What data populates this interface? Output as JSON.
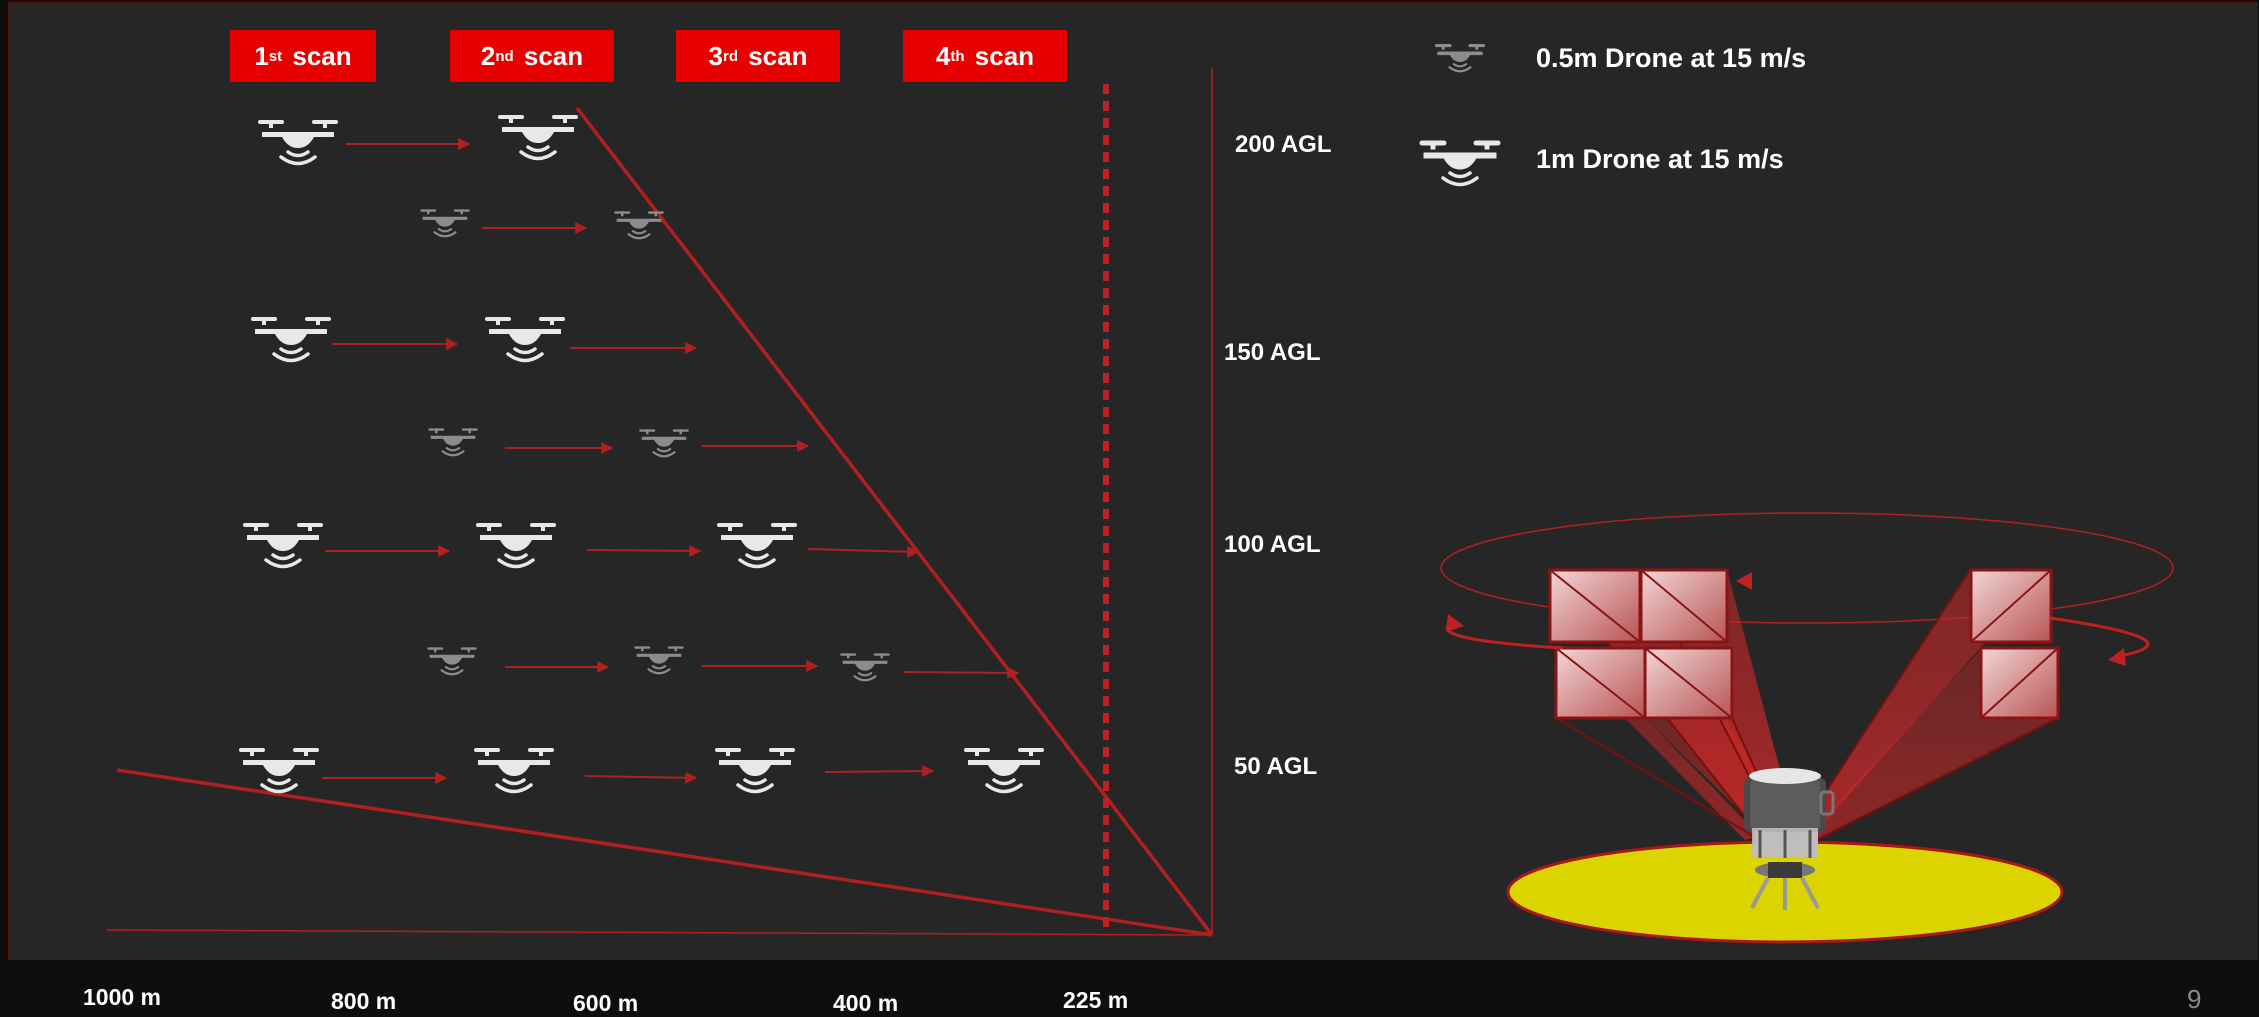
{
  "scans": [
    {
      "num": "1",
      "suffix": "st",
      "word": "scan"
    },
    {
      "num": "2",
      "suffix": "nd",
      "word": "scan"
    },
    {
      "num": "3",
      "suffix": "rd",
      "word": "scan"
    },
    {
      "num": "4",
      "suffix": "th",
      "word": "scan"
    }
  ],
  "altitudes": [
    "200 AGL",
    "150 AGL",
    "100 AGL",
    "50 AGL"
  ],
  "distances": [
    "1000 m",
    "800 m",
    "600 m",
    "400 m",
    "225 m"
  ],
  "legend": {
    "small_drone": "0.5m Drone at 15 m/s",
    "large_drone": "1m Drone at 15 m/s"
  },
  "page_number": "9",
  "colors": {
    "accent": "#e60000",
    "line": "#b02020",
    "drone_large": "#e8e8e8",
    "drone_small": "#8c8c8c",
    "ground": "#dcd400"
  },
  "icons": [
    "drone-icon",
    "arrow-icon",
    "radar-sensor-icon"
  ]
}
